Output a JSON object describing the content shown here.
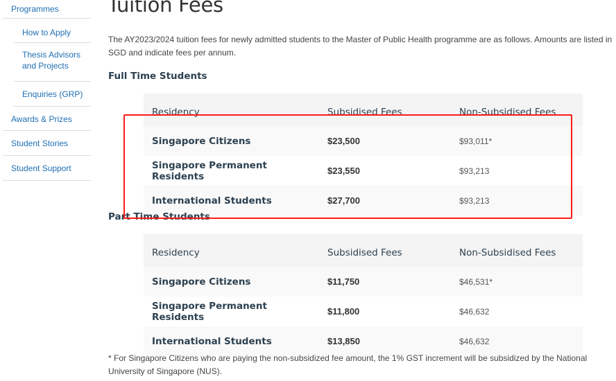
{
  "sidebar": {
    "items": [
      {
        "label": "Programmes",
        "level": "top"
      },
      {
        "label": "How to Apply",
        "level": "sub"
      },
      {
        "label": "Thesis Advisors and Projects",
        "level": "sub"
      },
      {
        "label": "Enquiries (GRP)",
        "level": "sub"
      },
      {
        "label": "Awards & Prizes",
        "level": "main"
      },
      {
        "label": "Student Stories",
        "level": "main"
      },
      {
        "label": "Student Support",
        "level": "main"
      }
    ]
  },
  "page": {
    "title": "Tuition Fees",
    "intro": "The AY2023/2024 tuition fees for newly admitted students to the Master of Public Health programme are as follows. Amounts are listed in SGD and indicate fees per annum.",
    "footnote": "* For Singapore Citizens who are paying the non-subsidized fee amount, the 1% GST increment will be subsidized by the National University of Singapore (NUS)."
  },
  "full_time": {
    "heading": "Full Time Students",
    "headers": [
      "Residency",
      "Subsidised Fees",
      "Non-Subsidised Fees"
    ],
    "rows": [
      [
        "Singapore Citizens",
        "$23,500",
        "$93,011*"
      ],
      [
        "Singapore Permanent Residents",
        "$23,550",
        "$93,213"
      ],
      [
        "International Students",
        "$27,700",
        "$93,213"
      ]
    ]
  },
  "part_time": {
    "heading": "Part Time Students",
    "headers": [
      "Residency",
      "Subsidised Fees",
      "Non-Subsidised Fees"
    ],
    "rows": [
      [
        "Singapore Citizens",
        "$11,750",
        "$46,531*"
      ],
      [
        "Singapore Permanent Residents",
        "$11,800",
        "$46,632"
      ],
      [
        "International Students",
        "$13,850",
        "$46,632"
      ]
    ]
  },
  "colors": {
    "link": "#1f6fb2",
    "highlight_box": "#ff1a1a",
    "heading": "#2d4150"
  }
}
